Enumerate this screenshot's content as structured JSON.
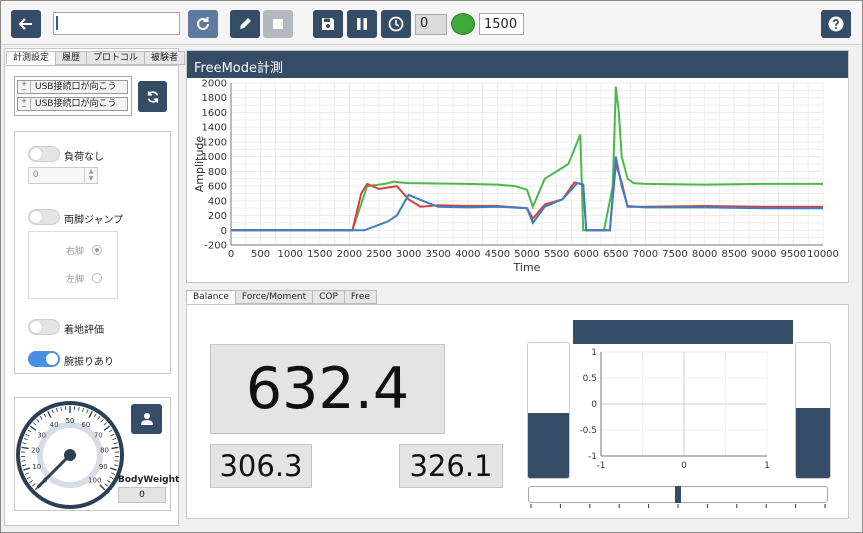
{
  "toolbar": {
    "text_input": "",
    "counter_value": "0",
    "threshold_value": "1500",
    "indicator_color": "#3aaa3a"
  },
  "left": {
    "tabs": [
      "計測設定",
      "履歴",
      "プロトコル",
      "被験者"
    ],
    "port_selects": [
      "USB接続口が向こう",
      "USB接続口が向こう"
    ],
    "no_load": {
      "label": "負荷なし",
      "value": "0",
      "on": false
    },
    "both_jump": {
      "label": "両脚ジャンプ",
      "on": false,
      "right": "右脚",
      "left": "左脚"
    },
    "landing": {
      "label": "着地評価",
      "on": false
    },
    "arm_swing": {
      "label": "腕振りあり",
      "on": true
    },
    "gauge": {
      "ticks": [
        "0",
        "10",
        "20",
        "30",
        "40",
        "50",
        "60",
        "70",
        "80",
        "90",
        "100"
      ],
      "value": 0
    },
    "bodyweight": {
      "label": "BodyWeight",
      "value": "0"
    }
  },
  "chart": {
    "header": "FreeMode計測",
    "chart_data": {
      "type": "line",
      "title": "FreeMode計測",
      "xlabel": "Time",
      "ylabel": "Amplitude",
      "xlim": [
        0,
        10000
      ],
      "ylim": [
        -200,
        2000
      ],
      "xticks": [
        0,
        500,
        1000,
        1500,
        2000,
        2500,
        3000,
        3500,
        4000,
        4500,
        5000,
        5500,
        6000,
        6500,
        7000,
        7500,
        8000,
        8500,
        9000,
        9500,
        10000
      ],
      "yticks": [
        -200,
        0,
        200,
        400,
        600,
        800,
        1000,
        1200,
        1400,
        1600,
        1800,
        2000
      ],
      "grid": true,
      "series": [
        {
          "color": "#4cb84c",
          "x": [
            0,
            2050,
            2300,
            2600,
            2750,
            2850,
            3000,
            4000,
            4500,
            4800,
            5000,
            5100,
            5300,
            5500,
            5700,
            5800,
            5900,
            5950,
            6000,
            6300,
            6450,
            6500,
            6550,
            6600,
            6700,
            6800,
            7000,
            8000,
            9000,
            10000
          ],
          "y": [
            0,
            0,
            600,
            630,
            660,
            650,
            640,
            630,
            620,
            600,
            550,
            320,
            700,
            800,
            900,
            1100,
            1300,
            0,
            0,
            0,
            600,
            1950,
            1600,
            1000,
            700,
            640,
            630,
            620,
            630,
            630
          ]
        },
        {
          "color": "#d9413a",
          "x": [
            0,
            2050,
            2200,
            2300,
            2500,
            2800,
            3000,
            3200,
            3500,
            4000,
            4500,
            5000,
            5100,
            5300,
            5600,
            5800,
            5950,
            6000,
            6400,
            6500,
            6600,
            6700,
            7000,
            8000,
            9000,
            10000
          ],
          "y": [
            0,
            0,
            500,
            630,
            560,
            600,
            420,
            320,
            340,
            330,
            330,
            300,
            160,
            350,
            420,
            650,
            620,
            0,
            0,
            900,
            650,
            320,
            320,
            330,
            320,
            320
          ]
        },
        {
          "color": "#3a7ec4",
          "x": [
            0,
            2250,
            2450,
            2650,
            2800,
            3000,
            3300,
            3500,
            4000,
            4500,
            5000,
            5100,
            5300,
            5600,
            5850,
            5950,
            6000,
            6400,
            6500,
            6600,
            6700,
            7000,
            8000,
            9000,
            10000
          ],
          "y": [
            0,
            0,
            60,
            120,
            200,
            480,
            380,
            320,
            310,
            320,
            300,
            100,
            320,
            420,
            640,
            620,
            0,
            0,
            1000,
            600,
            330,
            310,
            310,
            300,
            300
          ]
        }
      ]
    }
  },
  "bottom": {
    "tabs": [
      "Balance",
      "Force/Moment",
      "COP",
      "Free"
    ],
    "total": "632.4",
    "left_value": "306.3",
    "right_value": "326.1",
    "cop": {
      "chart_data": {
        "type": "scatter",
        "xlim": [
          -1,
          1
        ],
        "ylim": [
          -1,
          1
        ],
        "xticks": [
          -1,
          0,
          1
        ],
        "yticks": [
          1,
          0.5,
          0,
          -0.5,
          -1
        ],
        "points": []
      }
    },
    "left_bar_level": 0.48,
    "right_bar_level": 0.52,
    "balance_position": 0.5
  }
}
